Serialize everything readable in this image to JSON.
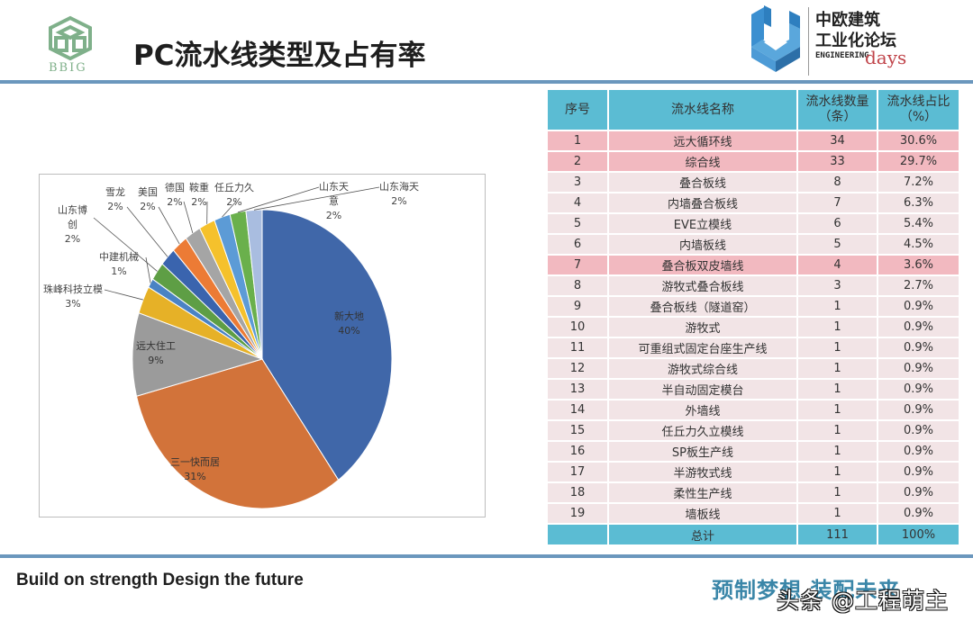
{
  "header": {
    "title": "PC流水线类型及占有率",
    "left_logo_text": "BBIG",
    "right_logo": {
      "line1": "中欧建筑",
      "line2": "工业化论坛",
      "engineering": "ENGINEERING",
      "days": "days"
    }
  },
  "colors": {
    "accent_line": "#6b97bd",
    "table_header": "#5bbcd3",
    "row_highlight": "#f2b9c0",
    "row_normal": "#f2e4e6",
    "slogan_cn": "#3a86a8"
  },
  "chart_data": {
    "type": "pie",
    "title": "",
    "categories": [
      "新大地",
      "三一快而居",
      "远大住工",
      "珠峰科技立模",
      "中建机械",
      "山东博创",
      "雪龙",
      "美国",
      "德国",
      "鞍重",
      "任丘力久",
      "山东天意",
      "山东海天"
    ],
    "values": [
      40,
      31,
      9,
      3,
      1,
      2,
      2,
      2,
      2,
      2,
      2,
      2,
      2
    ],
    "colors": [
      "#4067a9",
      "#d2733a",
      "#9b9b9b",
      "#e6b127",
      "#4a83c4",
      "#5e9e45",
      "#3a64ae",
      "#ec7b35",
      "#a5a5a5",
      "#f5c12c",
      "#5c9bd6",
      "#6ab04c",
      "#a9bde0"
    ],
    "labels": [
      {
        "name": "新大地",
        "pct": "40%"
      },
      {
        "name": "三一快而居",
        "pct": "31%"
      },
      {
        "name": "远大住工",
        "pct": "9%"
      },
      {
        "name": "珠峰科技立模",
        "pct": "3%"
      },
      {
        "name": "中建机械",
        "pct": "1%"
      },
      {
        "name": "山东博创",
        "name_l1": "山东博",
        "name_l2": "创",
        "pct": "2%"
      },
      {
        "name": "雪龙",
        "pct": "2%"
      },
      {
        "name": "美国",
        "pct": "2%"
      },
      {
        "name": "德国",
        "pct": "2%"
      },
      {
        "name": "鞍重",
        "pct": "2%"
      },
      {
        "name": "任丘力久",
        "pct": "2%"
      },
      {
        "name": "山东天意",
        "name_l1": "山东天",
        "name_l2": "意",
        "pct": "2%"
      },
      {
        "name": "山东海天",
        "pct": "2%"
      }
    ],
    "legend": "none (data labels with leader lines)"
  },
  "table": {
    "headers": {
      "no": "序号",
      "name": "流水线名称",
      "count_l1": "流水线数量",
      "count_l2": "（条）",
      "pct_l1": "流水线占比",
      "pct_l2": "（%）"
    },
    "rows": [
      {
        "no": "1",
        "name": "远大循环线",
        "count": "34",
        "pct": "30.6%",
        "highlight": true
      },
      {
        "no": "2",
        "name": "综合线",
        "count": "33",
        "pct": "29.7%",
        "highlight": true
      },
      {
        "no": "3",
        "name": "叠合板线",
        "count": "8",
        "pct": "7.2%",
        "highlight": false
      },
      {
        "no": "4",
        "name": "内墙叠合板线",
        "count": "7",
        "pct": "6.3%",
        "highlight": false
      },
      {
        "no": "5",
        "name": "EVE立模线",
        "count": "6",
        "pct": "5.4%",
        "highlight": false
      },
      {
        "no": "6",
        "name": "内墙板线",
        "count": "5",
        "pct": "4.5%",
        "highlight": false
      },
      {
        "no": "7",
        "name": "叠合板双皮墙线",
        "count": "4",
        "pct": "3.6%",
        "highlight": true
      },
      {
        "no": "8",
        "name": "游牧式叠合板线",
        "count": "3",
        "pct": "2.7%",
        "highlight": false
      },
      {
        "no": "9",
        "name": "叠合板线（隧道窑）",
        "count": "1",
        "pct": "0.9%",
        "highlight": false
      },
      {
        "no": "10",
        "name": "游牧式",
        "count": "1",
        "pct": "0.9%",
        "highlight": false
      },
      {
        "no": "11",
        "name": "可重组式固定台座生产线",
        "count": "1",
        "pct": "0.9%",
        "highlight": false
      },
      {
        "no": "12",
        "name": "游牧式综合线",
        "count": "1",
        "pct": "0.9%",
        "highlight": false
      },
      {
        "no": "13",
        "name": "半自动固定模台",
        "count": "1",
        "pct": "0.9%",
        "highlight": false
      },
      {
        "no": "14",
        "name": "外墙线",
        "count": "1",
        "pct": "0.9%",
        "highlight": false
      },
      {
        "no": "15",
        "name": "任丘力久立模线",
        "count": "1",
        "pct": "0.9%",
        "highlight": false
      },
      {
        "no": "16",
        "name": "SP板生产线",
        "count": "1",
        "pct": "0.9%",
        "highlight": false
      },
      {
        "no": "17",
        "name": "半游牧式线",
        "count": "1",
        "pct": "0.9%",
        "highlight": false
      },
      {
        "no": "18",
        "name": "柔性生产线",
        "count": "1",
        "pct": "0.9%",
        "highlight": false
      },
      {
        "no": "19",
        "name": "墙板线",
        "count": "1",
        "pct": "0.9%",
        "highlight": false
      }
    ],
    "total": {
      "no": "",
      "name": "总计",
      "count": "111",
      "pct": "100%"
    }
  },
  "footer": {
    "slogan_en": "Build on strength Design the future",
    "slogan_cn": "预制梦想 装配未来",
    "watermark": "头条 @工程萌主"
  }
}
